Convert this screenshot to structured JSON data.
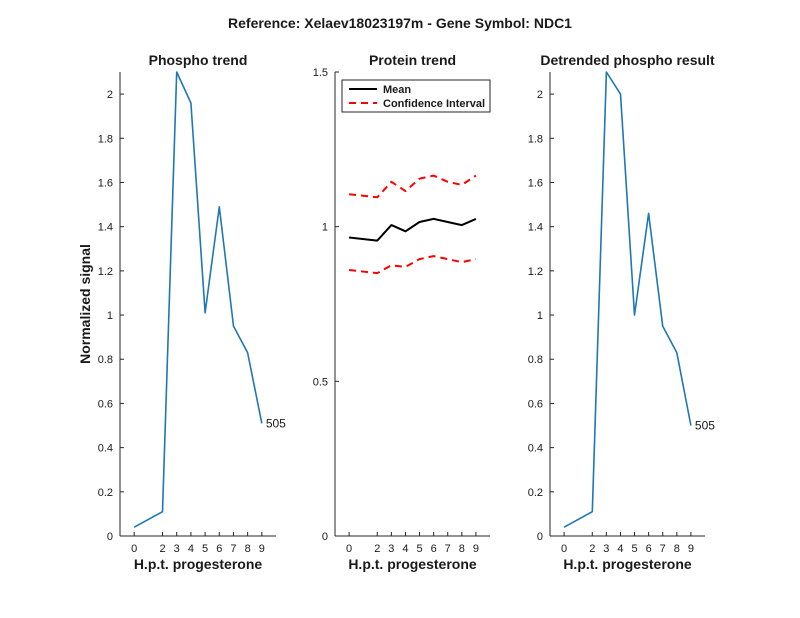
{
  "figure": {
    "title": "Reference:  Xelaev18023197m - Gene Symbol:  NDC1",
    "colors": {
      "phospho": "#1f77b4",
      "mean": "#000000",
      "ci": "#ff0000",
      "axis": "#262626"
    }
  },
  "chart_data": [
    {
      "type": "line",
      "title": "Phospho trend",
      "xlabel": "H.p.t. progesterone",
      "ylabel": "Normalized signal",
      "x_ticks": [
        0,
        2,
        3,
        4,
        5,
        6,
        7,
        8,
        9
      ],
      "y_ticks": [
        0,
        0.2,
        0.4,
        0.6,
        0.8,
        1,
        1.2,
        1.4,
        1.6,
        1.8,
        2
      ],
      "y_tick_labels": [
        "0",
        "0.2",
        "0.4",
        "0.6",
        "0.8",
        "1",
        "1.2",
        "1.4",
        "1.6",
        "1.8",
        "2"
      ],
      "ylim": [
        0,
        2.1
      ],
      "series": [
        {
          "name": "phospho",
          "x": [
            0,
            2,
            3,
            4,
            5,
            6,
            7,
            8,
            9
          ],
          "y": [
            0.04,
            0.11,
            2.1,
            1.96,
            1.01,
            1.49,
            0.95,
            0.83,
            0.51
          ]
        }
      ],
      "end_label": "505"
    },
    {
      "type": "line",
      "title": "Protein trend",
      "xlabel": "H.p.t. progesterone",
      "ylabel": "",
      "x_ticks": [
        0,
        2,
        3,
        4,
        5,
        6,
        7,
        8,
        9
      ],
      "y_ticks": [
        0,
        0.5,
        1,
        1.5
      ],
      "y_tick_labels": [
        "0",
        "0.5",
        "1",
        "1.5"
      ],
      "ylim": [
        0,
        1.5
      ],
      "legend": {
        "position": "top-left",
        "entries": [
          "Mean",
          "Confidence Interval"
        ]
      },
      "series": [
        {
          "name": "Mean",
          "x": [
            0,
            2,
            3,
            4,
            5,
            6,
            7,
            8,
            9
          ],
          "y": [
            0.965,
            0.955,
            1.005,
            0.985,
            1.015,
            1.025,
            1.015,
            1.005,
            1.025
          ]
        },
        {
          "name": "Confidence Interval (upper)",
          "x": [
            0,
            2,
            3,
            4,
            5,
            6,
            7,
            8,
            9
          ],
          "y": [
            1.105,
            1.095,
            1.145,
            1.115,
            1.155,
            1.165,
            1.145,
            1.135,
            1.165
          ]
        },
        {
          "name": "Confidence Interval (lower)",
          "x": [
            0,
            2,
            3,
            4,
            5,
            6,
            7,
            8,
            9
          ],
          "y": [
            0.86,
            0.85,
            0.875,
            0.87,
            0.895,
            0.905,
            0.895,
            0.885,
            0.895
          ]
        }
      ]
    },
    {
      "type": "line",
      "title": "Detrended phospho result",
      "xlabel": "H.p.t. progesterone",
      "ylabel": "",
      "x_ticks": [
        0,
        2,
        3,
        4,
        5,
        6,
        7,
        8,
        9
      ],
      "y_ticks": [
        0,
        0.2,
        0.4,
        0.6,
        0.8,
        1,
        1.2,
        1.4,
        1.6,
        1.8,
        2
      ],
      "y_tick_labels": [
        "0",
        "0.2",
        "0.4",
        "0.6",
        "0.8",
        "1",
        "1.2",
        "1.4",
        "1.6",
        "1.8",
        "2"
      ],
      "ylim": [
        0,
        2.1
      ],
      "series": [
        {
          "name": "detrended",
          "x": [
            0,
            2,
            3,
            4,
            5,
            6,
            7,
            8,
            9
          ],
          "y": [
            0.04,
            0.11,
            2.1,
            2.0,
            1.0,
            1.46,
            0.95,
            0.83,
            0.5
          ]
        }
      ],
      "end_label": "505"
    }
  ]
}
